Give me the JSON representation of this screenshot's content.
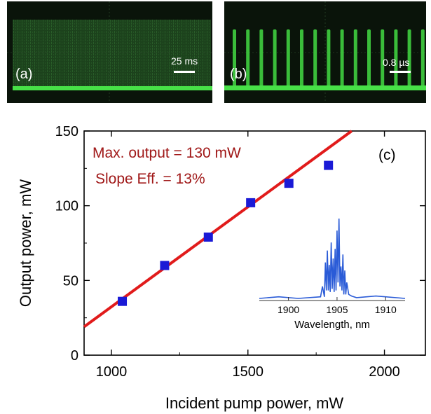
{
  "panels": {
    "a": {
      "label": "(a)",
      "scale": "25 ms"
    },
    "b": {
      "label": "(b)",
      "scale": "0.8 µs"
    }
  },
  "colors": {
    "scope_bg": "#0a140a",
    "trace": "#3fcf3f",
    "fit_line": "#e11b1b",
    "points": "#1a1ad6",
    "annotation": "#a01818",
    "inset": "#2a5bd7"
  },
  "chart_data": [
    {
      "type": "scatter",
      "panel": "(c)",
      "xlabel": "Incident pump power, mW",
      "ylabel": "Output power, mW",
      "xlim": [
        900,
        2150
      ],
      "ylim": [
        0,
        150
      ],
      "xticks": [
        1000,
        1500,
        2000
      ],
      "yticks": [
        0,
        50,
        100,
        150
      ],
      "series": [
        {
          "x": [
            1040,
            1195,
            1355,
            1510,
            1650,
            1795
          ],
          "y": [
            36,
            60,
            79,
            102,
            115,
            127
          ]
        }
      ],
      "fit": {
        "x": [
          900,
          1880
        ],
        "y": [
          19,
          150
        ]
      },
      "annotations": [
        "Max. output = 130 mW",
        "Slope Eff. = 13%"
      ],
      "grid": false
    },
    {
      "type": "line",
      "panel": "inset",
      "xlabel": "Wavelength, nm",
      "xlim": [
        1897,
        1912
      ],
      "xticks": [
        1900,
        1905,
        1910
      ],
      "series": [
        {
          "x": [
            1897,
            1899,
            1901,
            1903.3,
            1903.5,
            1903.7,
            1903.8,
            1903.9,
            1904.0,
            1904.1,
            1904.2,
            1904.3,
            1904.4,
            1904.5,
            1904.6,
            1904.7,
            1904.8,
            1904.9,
            1905.0,
            1905.1,
            1905.2,
            1905.3,
            1905.4,
            1905.5,
            1905.6,
            1905.7,
            1905.8,
            1905.9,
            1906.0,
            1906.2,
            1906.5,
            1907,
            1909,
            1912
          ],
          "y": [
            0,
            0.02,
            0,
            0.02,
            0.15,
            0.02,
            0.45,
            0.1,
            0.6,
            0.1,
            0.42,
            0.08,
            0.7,
            0.12,
            0.5,
            0.08,
            0.62,
            0.1,
            0.85,
            0.2,
            1.0,
            0.15,
            0.4,
            0.1,
            0.55,
            0.05,
            0.35,
            0.05,
            0.2,
            0.05,
            0.03,
            0.01,
            0.03,
            0
          ]
        }
      ]
    }
  ]
}
